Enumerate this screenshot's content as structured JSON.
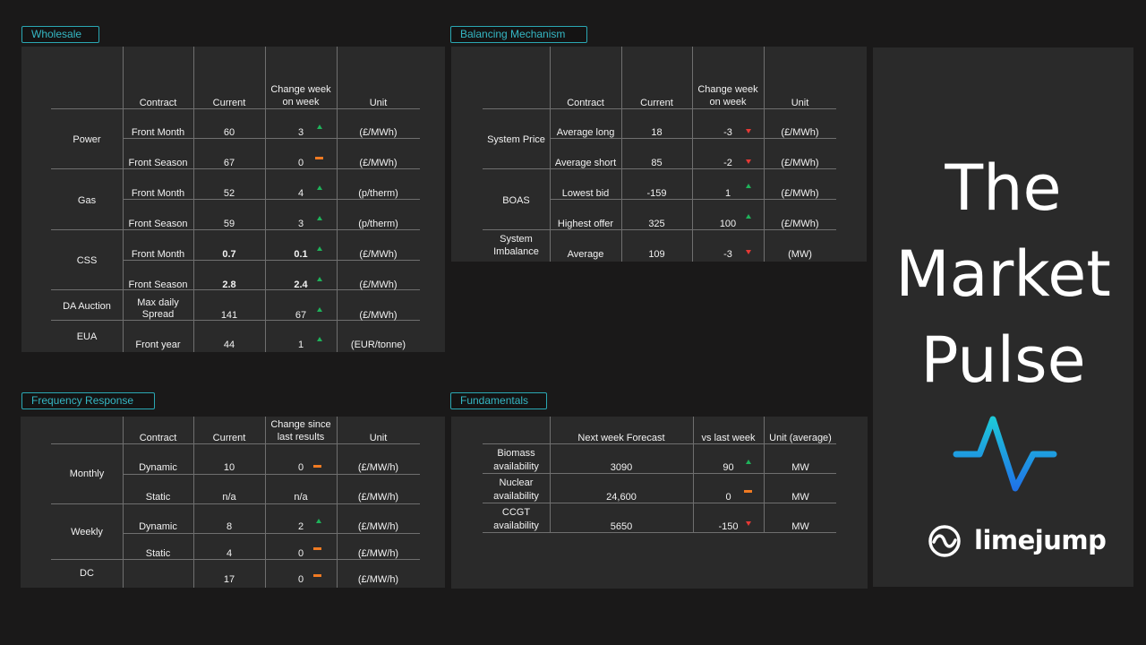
{
  "title_panel": {
    "title_lines": [
      "The",
      "Market",
      "Pulse"
    ],
    "logo_text": "limejump",
    "pulse_colors": [
      "#1ec8d8",
      "#1f73e8"
    ]
  },
  "wholesale": {
    "label": "Wholesale",
    "headers": {
      "contract": "Contract",
      "current": "Current",
      "change_1": "Change week",
      "change_2": "on week",
      "unit": "Unit"
    },
    "groups": [
      {
        "name": "Power"
      },
      {
        "name": "Gas"
      },
      {
        "name": "CSS"
      },
      {
        "name": "DA Auction"
      },
      {
        "name": "EUA"
      }
    ],
    "rows": [
      {
        "contract": "Front Month",
        "current": "60",
        "change": "3",
        "trend": "up",
        "unit": "(£/MWh)"
      },
      {
        "contract": "Front Season",
        "current": "67",
        "change": "0",
        "trend": "flat",
        "unit": "(£/MWh)"
      },
      {
        "contract": "Front Month",
        "current": "52",
        "change": "4",
        "trend": "up",
        "unit": "(p/therm)"
      },
      {
        "contract": "Front Season",
        "current": "59",
        "change": "3",
        "trend": "up",
        "unit": "(p/therm)"
      },
      {
        "contract": "Front Month",
        "current": "0.7",
        "change": "0.1",
        "trend": "up",
        "unit": "(£/MWh)"
      },
      {
        "contract": "Front Season",
        "current": "2.8",
        "change": "2.4",
        "trend": "up",
        "unit": "(£/MWh)"
      },
      {
        "contract_1": "Max daily",
        "contract_2": "Spread",
        "current": "141",
        "change": "67",
        "trend": "up",
        "unit": "(£/MWh)"
      },
      {
        "contract": "Front year",
        "current": "44",
        "change": "1",
        "trend": "up",
        "unit": "(EUR/tonne)"
      }
    ]
  },
  "balancing": {
    "label": "Balancing Mechanism",
    "headers": {
      "contract": "Contract",
      "current": "Current",
      "change_1": "Change week",
      "change_2": "on week",
      "unit": "Unit"
    },
    "groups": [
      {
        "name": "System Price"
      },
      {
        "name": "BOAS"
      },
      {
        "name_1": "System",
        "name_2": "Imbalance"
      }
    ],
    "rows": [
      {
        "contract": "Average long",
        "current": "18",
        "change": "-3",
        "trend": "down",
        "unit": "(£/MWh)"
      },
      {
        "contract": "Average short",
        "current": "85",
        "change": "-2",
        "trend": "down",
        "unit": "(£/MWh)"
      },
      {
        "contract": "Lowest bid",
        "current": "-159",
        "change": "1",
        "trend": "up",
        "unit": "(£/MWh)"
      },
      {
        "contract": "Highest offer",
        "current": "325",
        "change": "100",
        "trend": "up",
        "unit": "(£/MWh)"
      },
      {
        "contract": "Average",
        "current": "109",
        "change": "-3",
        "trend": "down",
        "unit": "(MW)"
      }
    ]
  },
  "frequency": {
    "label": "Frequency Response",
    "headers": {
      "contract": "Contract",
      "current": "Current",
      "change_1": "Change since",
      "change_2": "last results",
      "unit": "Unit"
    },
    "groups": [
      {
        "name": "Monthly"
      },
      {
        "name": "Weekly"
      },
      {
        "name": "DC"
      }
    ],
    "rows": [
      {
        "contract": "Dynamic",
        "current": "10",
        "change": "0",
        "trend": "flat",
        "unit": "(£/MW/h)"
      },
      {
        "contract": "Static",
        "current": "n/a",
        "change": "n/a",
        "trend": "none",
        "unit": "(£/MW/h)"
      },
      {
        "contract": "Dynamic",
        "current": "8",
        "change": "2",
        "trend": "up",
        "unit": "(£/MW/h)"
      },
      {
        "contract": "Static",
        "current": "4",
        "change": "0",
        "trend": "flat",
        "unit": "(£/MW/h)"
      },
      {
        "contract": "",
        "current": "17",
        "change": "0",
        "trend": "flat",
        "unit": "(£/MW/h)"
      }
    ]
  },
  "fundamentals": {
    "label": "Fundamentals",
    "headers": {
      "forecast": "Next week Forecast",
      "vs": "vs last week",
      "unit": "Unit (average)"
    },
    "rows": [
      {
        "name_1": "Biomass",
        "name_2": "availability",
        "forecast": "3090",
        "vs": "90",
        "trend": "up",
        "unit": "MW"
      },
      {
        "name_1": "Nuclear",
        "name_2": "availability",
        "forecast": "24,600",
        "vs": "0",
        "trend": "flat",
        "unit": "MW"
      },
      {
        "name_1": "CCGT",
        "name_2": "availability",
        "forecast": "5650",
        "vs": "-150",
        "trend": "down",
        "unit": "MW"
      }
    ]
  }
}
